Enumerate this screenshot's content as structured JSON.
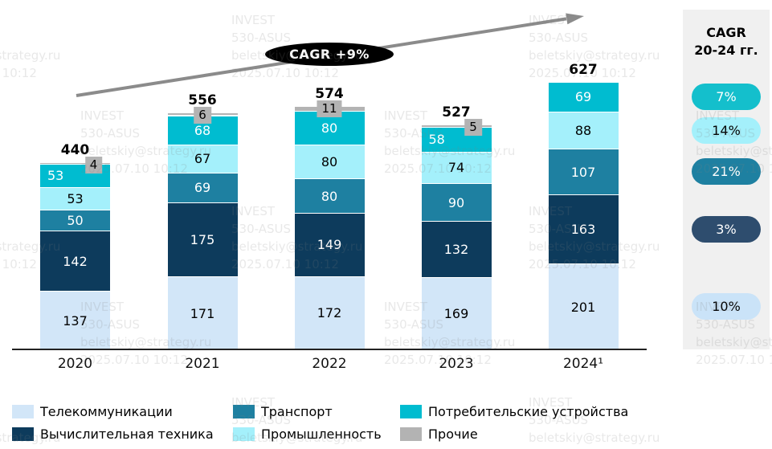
{
  "annotation": {
    "cagr_label": "CAGR +9%"
  },
  "side_panel": {
    "title_line1": "CAGR",
    "title_line2": "20-24 гг.",
    "background": "#f0f0f0"
  },
  "watermark": {
    "lines": [
      "INVEST",
      "530-ASUS",
      "beletskiy@strategy.ru",
      "2025.07.10 10:12"
    ]
  },
  "chart_data": {
    "type": "bar",
    "stacked": true,
    "title": "",
    "xlabel": "",
    "ylabel": "",
    "grid": false,
    "legend_position": "bottom",
    "categories": [
      "2020",
      "2021",
      "2022",
      "2023",
      "2024¹"
    ],
    "totals": [
      440,
      556,
      574,
      527,
      627
    ],
    "series": [
      {
        "name": "Телекоммуникации",
        "color": "#d2e6f8",
        "label_color": "#000000",
        "cagr": "10%",
        "pill_color": "#cae3f8",
        "pill_text_color": "#000000",
        "values": [
          137,
          171,
          172,
          169,
          201
        ]
      },
      {
        "name": "Вычислительная техника",
        "color": "#0d3b5c",
        "label_color": "#ffffff",
        "cagr": "3%",
        "pill_color": "#2e4d6e",
        "pill_text_color": "#ffffff",
        "values": [
          142,
          175,
          149,
          132,
          163
        ]
      },
      {
        "name": "Транспорт",
        "color": "#1e80a1",
        "label_color": "#ffffff",
        "cagr": "21%",
        "pill_color": "#1e80a1",
        "pill_text_color": "#ffffff",
        "values": [
          50,
          69,
          80,
          90,
          107
        ]
      },
      {
        "name": "Промышленность",
        "color": "#a4f0fb",
        "label_color": "#000000",
        "cagr": "14%",
        "pill_color": "#a4f0fb",
        "pill_text_color": "#000000",
        "values": [
          53,
          67,
          80,
          74,
          88
        ]
      },
      {
        "name": "Потребительские устройства",
        "color": "#00bcd0",
        "label_color": "#ffffff",
        "cagr": "7%",
        "pill_color": "#14bfcc",
        "pill_text_color": "#ffffff",
        "values": [
          53,
          68,
          80,
          58,
          69
        ],
        "label_align": [
          "left",
          "center",
          "center",
          "left",
          "center"
        ]
      },
      {
        "name": "Прочие",
        "color": "#b3b3b3",
        "label_color": "#000000",
        "cagr": null,
        "values": [
          4,
          6,
          11,
          5,
          null
        ],
        "badge_dx": [
          23,
          0,
          0,
          21,
          0
        ]
      }
    ]
  }
}
